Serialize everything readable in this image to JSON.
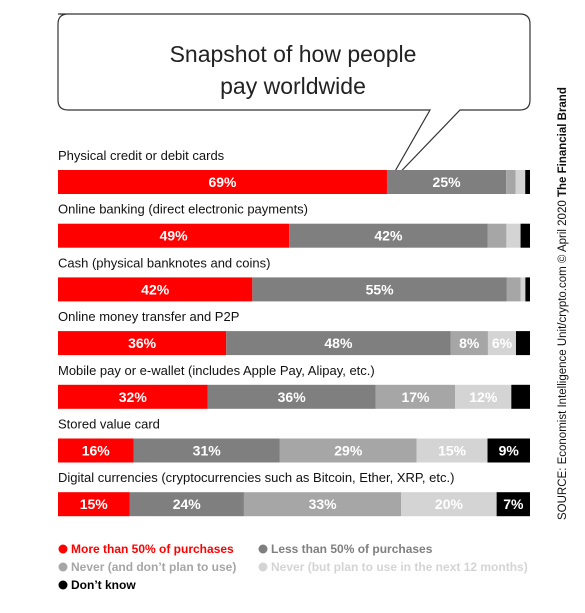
{
  "chart_data": {
    "type": "bar",
    "title": "Snapshot of how people pay worldwide",
    "title_lines": [
      "Snapshot of how people",
      "pay worldwide"
    ],
    "categories": [
      "Physical credit or debit cards",
      "Online banking (direct electronic payments)",
      "Cash (physical banknotes and coins)",
      "Online money transfer and P2P",
      "Mobile pay or e-wallet (includes Apple Pay, Alipay, etc.)",
      "Stored value card",
      "Digital currencies (cryptocurrencies such as Bitcoin, Ether, XRP, etc.)"
    ],
    "series": [
      {
        "name": "More than 50% of purchases",
        "color": "#ff0000",
        "label_color": "#ffffff",
        "values": [
          69,
          49,
          42,
          36,
          32,
          16,
          15
        ]
      },
      {
        "name": "Less than 50% of purchases",
        "color": "#7f7f7f",
        "label_color": "#ffffff",
        "values": [
          25,
          42,
          55,
          48,
          36,
          31,
          24
        ]
      },
      {
        "name": "Never (and don’t plan to use)",
        "color": "#a6a6a6",
        "label_color": "#ffffff",
        "values": [
          2,
          4,
          3,
          8,
          17,
          29,
          33
        ]
      },
      {
        "name": "Never (but plan to use in the next 12 months)",
        "color": "#d4d4d4",
        "label_color": "#ffffff",
        "values": [
          2,
          3,
          1,
          6,
          12,
          15,
          20
        ]
      },
      {
        "name": "Don’t know",
        "color": "#000000",
        "label_color": "#ffffff",
        "values": [
          1,
          2,
          1,
          3,
          4,
          9,
          7
        ]
      }
    ],
    "segment_labels": [
      [
        "69%",
        "25%",
        "",
        "",
        ""
      ],
      [
        "49%",
        "42%",
        "",
        "",
        ""
      ],
      [
        "42%",
        "55%",
        "",
        "",
        ""
      ],
      [
        "36%",
        "48%",
        "8%",
        "6%",
        ""
      ],
      [
        "32%",
        "36%",
        "17%",
        "12%",
        ""
      ],
      [
        "16%",
        "31%",
        "29%",
        "15%",
        "9%"
      ],
      [
        "15%",
        "24%",
        "33%",
        "20%",
        "7%"
      ]
    ],
    "stacked": true,
    "orientation": "horizontal",
    "xlim": [
      0,
      100
    ],
    "grid": false,
    "legend_position": "bottom-left",
    "source": "SOURCE: Economist Intelligence Unit/crypto.com © April 2020",
    "brand": "The Financial Brand"
  }
}
